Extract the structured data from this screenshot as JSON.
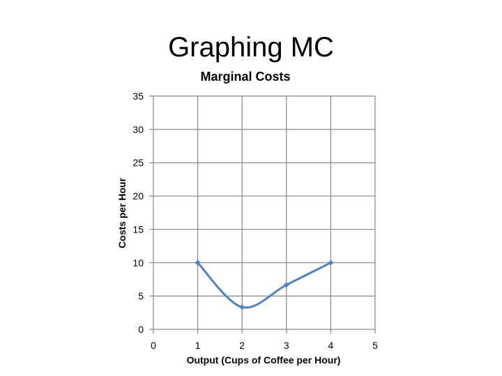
{
  "slide": {
    "title": "Graphing MC"
  },
  "chart_data": {
    "type": "line",
    "title": "Marginal Costs",
    "xlabel": "Output (Cups of Coffee per Hour)",
    "ylabel": "Costs per Hour",
    "xlim": [
      0,
      5
    ],
    "ylim": [
      0,
      35
    ],
    "xticks": [
      0,
      1,
      2,
      3,
      4,
      5
    ],
    "yticks": [
      0,
      5,
      10,
      15,
      20,
      25,
      30,
      35
    ],
    "grid": true,
    "series": [
      {
        "x": [
          1,
          2,
          3,
          4
        ],
        "y": [
          10,
          3.33,
          6.67,
          10
        ],
        "color": "#4f81bd",
        "marker": "diamond",
        "smooth": true
      }
    ]
  }
}
